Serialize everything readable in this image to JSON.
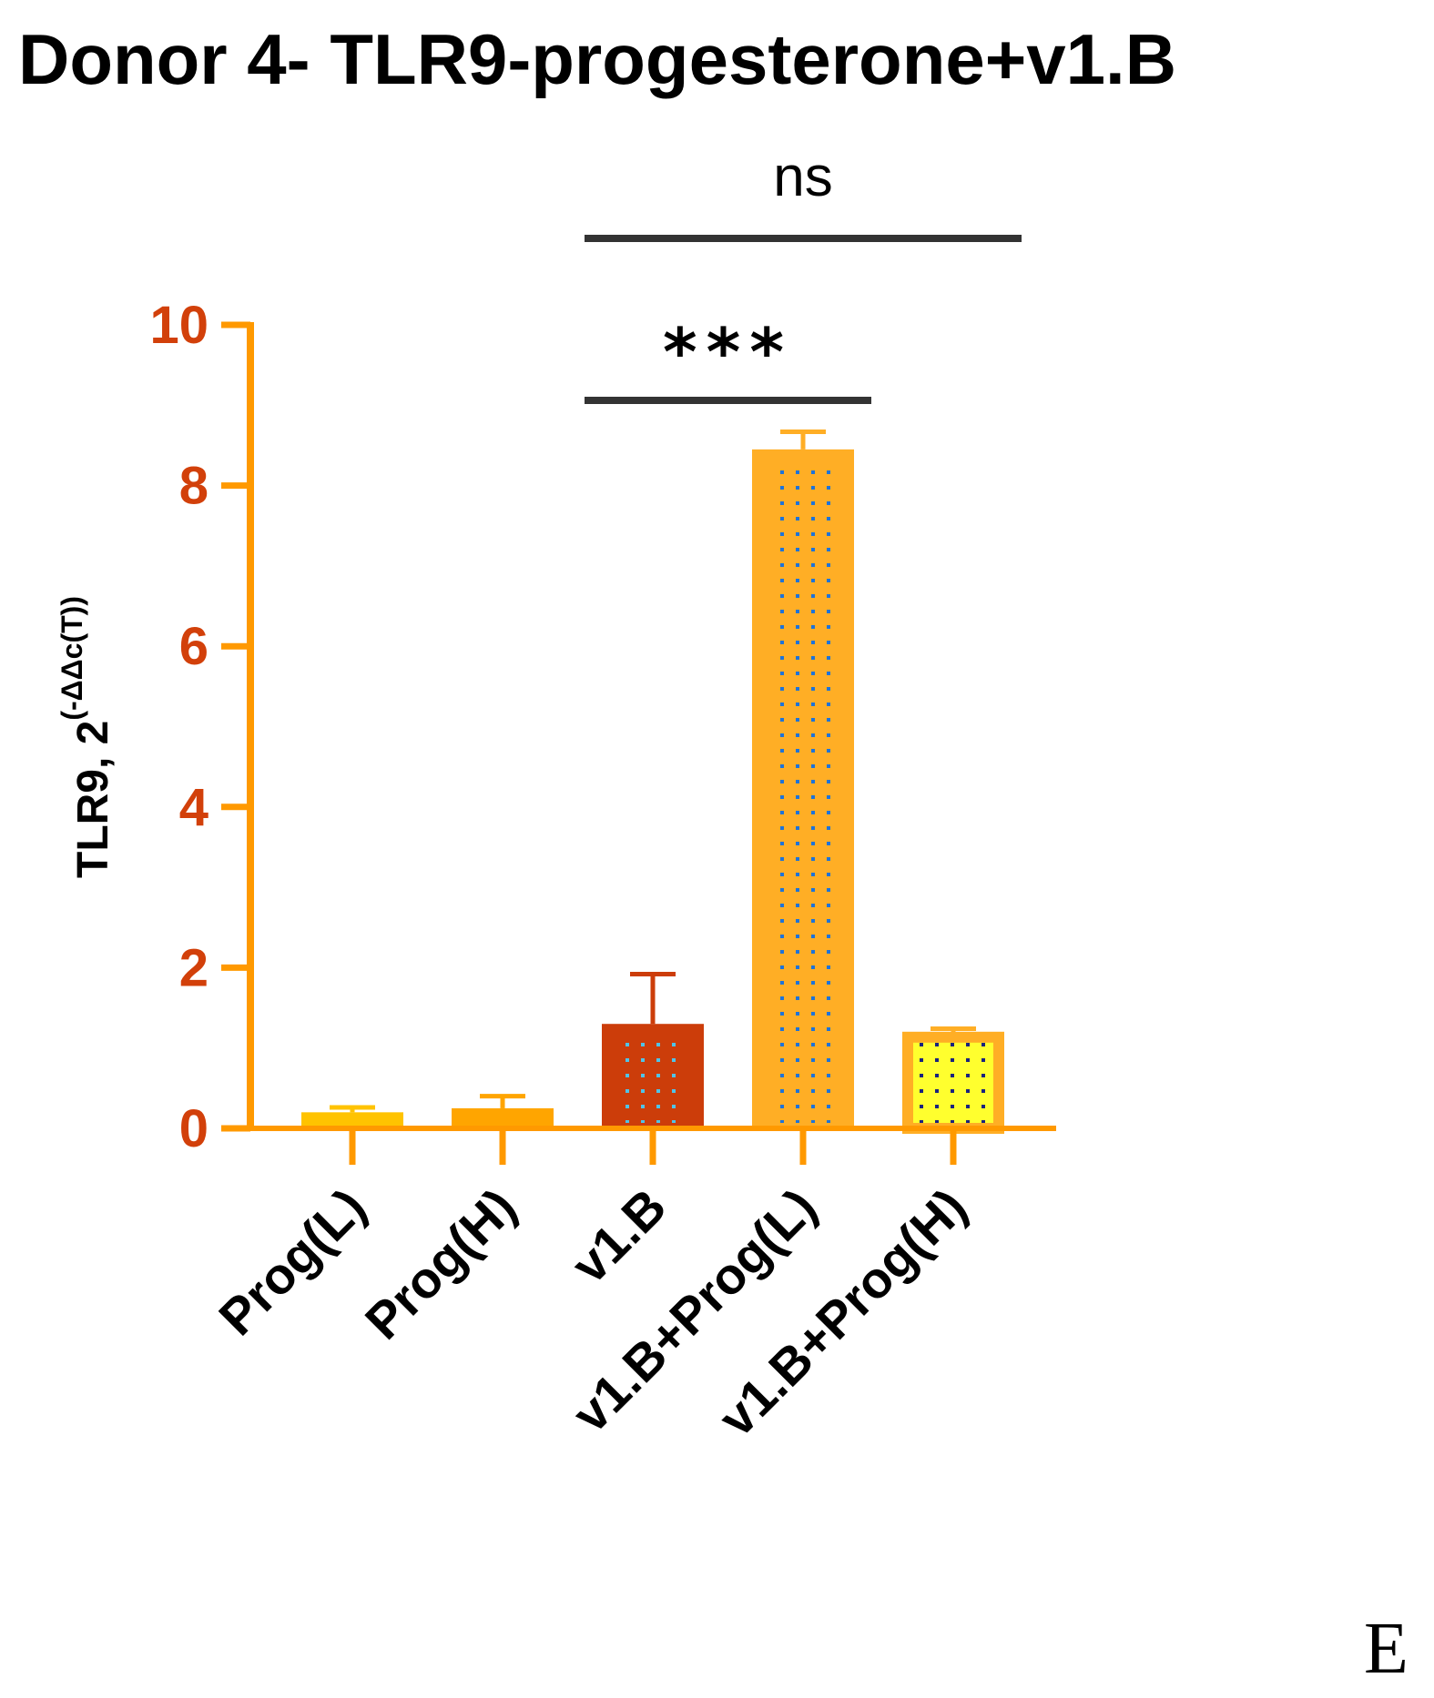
{
  "chart_data": {
    "type": "bar",
    "title": "Donor 4- TLR9-progesterone+v1.B",
    "ylabel": {
      "main": "TLR9, 2",
      "superscript": "(-ΔΔc(T))"
    },
    "xlabel": "",
    "ylim": [
      0,
      10
    ],
    "yticks": [
      "0",
      "2",
      "4",
      "6",
      "8",
      "10"
    ],
    "categories": [
      "Prog(L)",
      "Prog(H)",
      "v1.B",
      "v1.B+Prog(L)",
      "v1.B+Prog(H)"
    ],
    "values": [
      0.2,
      0.25,
      1.3,
      8.45,
      1.18
    ],
    "errors": [
      0.06,
      0.15,
      0.62,
      0.22,
      0.06
    ],
    "bar_colors": [
      "#FFC300",
      "#FFA500",
      "#CC3D0A",
      "#FFAE25",
      "#FFAE25"
    ],
    "inner_fill": [
      null,
      null,
      null,
      null,
      "#FFFF2E"
    ],
    "dot_colors": [
      null,
      null,
      "#4FC3E8",
      "#1E73D9",
      "#1A237E"
    ],
    "axis_color": "#FF9900",
    "tick_label_color": "#D2400A",
    "significance": [
      {
        "from": 2,
        "to": 3,
        "label": "***"
      },
      {
        "from": 2,
        "to": 4,
        "label": "ns"
      }
    ],
    "grid": false,
    "legend": "none"
  },
  "panel_label": "E"
}
